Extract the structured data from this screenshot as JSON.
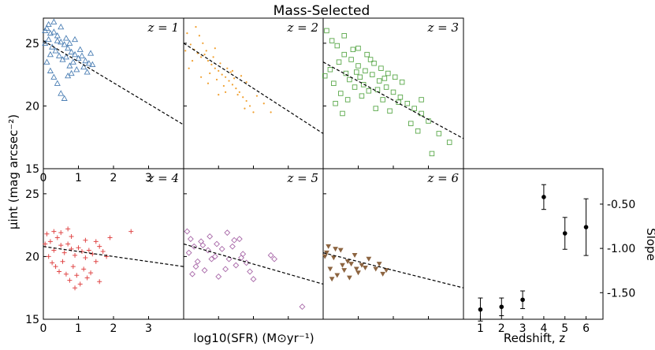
{
  "title": "Mass-Selected",
  "xlabel": "log10(SFR) (M⊙yr⁻¹)",
  "ylabel": "μint (mag arcsec⁻²)",
  "slope_xlabel": "Redshift, z",
  "slope_ylabel": "Slope",
  "chart_data": [
    {
      "type": "scatter",
      "panel_label": "z = 1",
      "marker": "open triangle",
      "color": "#4c7fb4",
      "xlim": [
        0,
        4
      ],
      "ylim": [
        15,
        27
      ],
      "yticks": [
        "15",
        "20",
        "25"
      ],
      "xticks": [
        "0",
        "1",
        "2",
        "3"
      ],
      "fit_line": {
        "x": [
          0,
          4
        ],
        "y": [
          25.2,
          18.5
        ]
      },
      "points": [
        [
          0.1,
          26.2
        ],
        [
          0.2,
          25.8
        ],
        [
          0.3,
          25.9
        ],
        [
          0.15,
          25.3
        ],
        [
          0.4,
          25.6
        ],
        [
          0.5,
          25.1
        ],
        [
          0.6,
          24.9
        ],
        [
          0.25,
          24.7
        ],
        [
          0.35,
          24.4
        ],
        [
          0.7,
          24.6
        ],
        [
          0.8,
          24.3
        ],
        [
          0.9,
          24.1
        ],
        [
          1.0,
          23.8
        ],
        [
          1.1,
          24.0
        ],
        [
          1.2,
          23.6
        ],
        [
          1.3,
          23.4
        ],
        [
          1.4,
          23.3
        ],
        [
          0.05,
          25.0
        ],
        [
          0.45,
          24.0
        ],
        [
          0.55,
          23.7
        ],
        [
          0.65,
          23.9
        ],
        [
          0.75,
          23.2
        ],
        [
          0.85,
          23.5
        ],
        [
          0.95,
          22.9
        ],
        [
          0.1,
          23.5
        ],
        [
          0.2,
          22.8
        ],
        [
          0.3,
          22.3
        ],
        [
          0.4,
          21.8
        ],
        [
          0.5,
          21.0
        ],
        [
          0.6,
          20.6
        ],
        [
          0.7,
          22.4
        ],
        [
          0.15,
          26.5
        ],
        [
          0.3,
          26.7
        ],
        [
          0.5,
          26.3
        ],
        [
          0.65,
          25.4
        ],
        [
          0.75,
          25.0
        ],
        [
          1.05,
          24.5
        ],
        [
          1.15,
          23.1
        ],
        [
          1.25,
          22.7
        ],
        [
          1.35,
          24.2
        ],
        [
          0.2,
          24.1
        ],
        [
          0.05,
          26.0
        ],
        [
          0.4,
          25.2
        ],
        [
          0.9,
          25.3
        ],
        [
          0.8,
          22.6
        ]
      ]
    },
    {
      "type": "scatter",
      "panel_label": "z = 2",
      "marker": "dot",
      "color": "#f0a030",
      "xlim": [
        0,
        4
      ],
      "ylim": [
        15,
        27
      ],
      "fit_line": {
        "x": [
          0,
          4
        ],
        "y": [
          25.0,
          17.8
        ]
      },
      "points": [
        [
          0.1,
          25.8
        ],
        [
          0.2,
          24.9
        ],
        [
          0.3,
          24.5
        ],
        [
          0.4,
          24.2
        ],
        [
          0.5,
          23.9
        ],
        [
          0.6,
          24.1
        ],
        [
          0.7,
          23.6
        ],
        [
          0.8,
          23.3
        ],
        [
          0.9,
          23.0
        ],
        [
          1.0,
          22.8
        ],
        [
          1.1,
          22.5
        ],
        [
          1.2,
          22.3
        ],
        [
          1.3,
          22.0
        ],
        [
          1.4,
          21.7
        ],
        [
          1.5,
          21.4
        ],
        [
          1.6,
          21.1
        ],
        [
          1.7,
          20.7
        ],
        [
          1.8,
          20.4
        ],
        [
          1.9,
          20.0
        ],
        [
          2.0,
          19.5
        ],
        [
          0.35,
          26.3
        ],
        [
          0.45,
          25.6
        ],
        [
          0.55,
          25.0
        ],
        [
          0.65,
          24.4
        ],
        [
          0.75,
          22.6
        ],
        [
          0.85,
          23.9
        ],
        [
          0.95,
          22.1
        ],
        [
          1.05,
          23.4
        ],
        [
          1.15,
          21.6
        ],
        [
          1.25,
          23.0
        ],
        [
          1.35,
          22.7
        ],
        [
          1.45,
          22.2
        ],
        [
          1.55,
          20.9
        ],
        [
          1.65,
          22.4
        ],
        [
          0.25,
          23.6
        ],
        [
          0.15,
          23.0
        ],
        [
          0.05,
          24.4
        ],
        [
          1.8,
          21.9
        ],
        [
          2.1,
          20.8
        ],
        [
          2.3,
          20.2
        ],
        [
          2.5,
          19.5
        ],
        [
          1.75,
          19.8
        ],
        [
          0.5,
          22.3
        ],
        [
          0.9,
          24.6
        ],
        [
          1.2,
          21.1
        ],
        [
          1.4,
          22.8
        ],
        [
          0.7,
          21.8
        ],
        [
          1.0,
          20.9
        ]
      ]
    },
    {
      "type": "scatter",
      "panel_label": "z = 3",
      "marker": "open square",
      "color": "#5aa84a",
      "xlim": [
        0,
        4
      ],
      "ylim": [
        15,
        27
      ],
      "fit_line": {
        "x": [
          0,
          4
        ],
        "y": [
          23.5,
          17.4
        ]
      },
      "points": [
        [
          0.1,
          26.0
        ],
        [
          0.25,
          25.2
        ],
        [
          0.4,
          24.8
        ],
        [
          0.6,
          24.1
        ],
        [
          0.8,
          23.7
        ],
        [
          1.0,
          23.2
        ],
        [
          1.2,
          22.8
        ],
        [
          1.4,
          22.5
        ],
        [
          1.6,
          22.0
        ],
        [
          1.8,
          21.5
        ],
        [
          2.0,
          21.1
        ],
        [
          2.2,
          20.7
        ],
        [
          2.4,
          20.2
        ],
        [
          2.6,
          19.8
        ],
        [
          2.8,
          19.4
        ],
        [
          3.0,
          18.8
        ],
        [
          3.3,
          17.8
        ],
        [
          3.6,
          17.1
        ],
        [
          0.3,
          21.8
        ],
        [
          0.5,
          21.0
        ],
        [
          0.7,
          20.5
        ],
        [
          0.9,
          21.5
        ],
        [
          1.1,
          20.8
        ],
        [
          1.3,
          21.2
        ],
        [
          1.5,
          19.8
        ],
        [
          1.7,
          20.5
        ],
        [
          1.9,
          19.6
        ],
        [
          0.2,
          22.9
        ],
        [
          0.45,
          23.5
        ],
        [
          0.65,
          22.6
        ],
        [
          0.85,
          24.5
        ],
        [
          1.05,
          22.3
        ],
        [
          1.25,
          24.1
        ],
        [
          1.45,
          23.4
        ],
        [
          1.65,
          23.0
        ],
        [
          1.85,
          22.6
        ],
        [
          2.05,
          22.3
        ],
        [
          2.25,
          21.9
        ],
        [
          2.5,
          18.6
        ],
        [
          2.7,
          18.0
        ],
        [
          3.1,
          16.2
        ],
        [
          0.35,
          20.2
        ],
        [
          0.55,
          19.4
        ],
        [
          0.75,
          22.1
        ],
        [
          0.95,
          22.7
        ],
        [
          1.15,
          21.7
        ],
        [
          1.35,
          23.7
        ],
        [
          1.55,
          21.3
        ],
        [
          1.75,
          22.2
        ],
        [
          2.15,
          20.3
        ],
        [
          0.05,
          22.4
        ],
        [
          1.0,
          24.6
        ],
        [
          0.6,
          25.6
        ],
        [
          2.8,
          20.5
        ]
      ]
    },
    {
      "type": "scatter",
      "panel_label": "z = 4",
      "marker": "plus",
      "color": "#e04848",
      "xlim": [
        0,
        4
      ],
      "ylim": [
        15,
        27
      ],
      "yticks": [
        "15",
        "20",
        "25"
      ],
      "xticks": [
        "0",
        "1",
        "2",
        "3"
      ],
      "fit_line": {
        "x": [
          0,
          4
        ],
        "y": [
          20.8,
          19.2
        ]
      },
      "points": [
        [
          0.1,
          21.8
        ],
        [
          0.2,
          21.2
        ],
        [
          0.3,
          20.5
        ],
        [
          0.4,
          21.5
        ],
        [
          0.5,
          20.9
        ],
        [
          0.6,
          20.3
        ],
        [
          0.7,
          21.0
        ],
        [
          0.8,
          20.6
        ],
        [
          0.9,
          20.1
        ],
        [
          1.0,
          20.7
        ],
        [
          1.1,
          20.4
        ],
        [
          1.2,
          19.9
        ],
        [
          1.3,
          20.5
        ],
        [
          1.4,
          20.2
        ],
        [
          1.5,
          19.6
        ],
        [
          1.6,
          20.8
        ],
        [
          1.7,
          20.4
        ],
        [
          1.8,
          20.0
        ],
        [
          0.15,
          20.0
        ],
        [
          0.25,
          19.5
        ],
        [
          0.35,
          19.2
        ],
        [
          0.45,
          18.8
        ],
        [
          0.55,
          19.6
        ],
        [
          0.65,
          18.6
        ],
        [
          0.75,
          18.1
        ],
        [
          0.85,
          19.2
        ],
        [
          0.95,
          18.5
        ],
        [
          1.05,
          17.8
        ],
        [
          1.15,
          19.0
        ],
        [
          1.25,
          18.3
        ],
        [
          0.05,
          21.0
        ],
        [
          0.5,
          21.9
        ],
        [
          0.8,
          21.6
        ],
        [
          1.2,
          21.3
        ],
        [
          1.5,
          21.2
        ],
        [
          2.5,
          22.0
        ],
        [
          1.9,
          21.5
        ],
        [
          0.3,
          22.0
        ],
        [
          0.7,
          22.2
        ],
        [
          1.35,
          18.7
        ],
        [
          0.9,
          17.5
        ],
        [
          1.6,
          18.0
        ]
      ]
    },
    {
      "type": "scatter",
      "panel_label": "z = 5",
      "marker": "open diamond",
      "color": "#a868a8",
      "xlim": [
        0,
        4
      ],
      "ylim": [
        15,
        27
      ],
      "fit_line": {
        "x": [
          0,
          4
        ],
        "y": [
          21.0,
          17.8
        ]
      },
      "points": [
        [
          0.1,
          22.0
        ],
        [
          0.2,
          21.4
        ],
        [
          0.3,
          20.8
        ],
        [
          0.5,
          21.2
        ],
        [
          0.7,
          20.5
        ],
        [
          0.9,
          20.0
        ],
        [
          1.1,
          20.6
        ],
        [
          1.3,
          19.8
        ],
        [
          1.5,
          19.3
        ],
        [
          1.7,
          20.2
        ],
        [
          1.9,
          18.8
        ],
        [
          0.4,
          19.6
        ],
        [
          0.6,
          18.9
        ],
        [
          0.8,
          19.8
        ],
        [
          1.0,
          18.4
        ],
        [
          1.2,
          19.0
        ],
        [
          1.4,
          20.8
        ],
        [
          1.6,
          21.4
        ],
        [
          1.8,
          19.5
        ],
        [
          2.0,
          18.2
        ],
        [
          2.5,
          20.1
        ],
        [
          2.6,
          19.8
        ],
        [
          3.4,
          16.0
        ],
        [
          0.15,
          20.3
        ],
        [
          0.35,
          19.2
        ],
        [
          0.55,
          20.9
        ],
        [
          0.75,
          21.6
        ],
        [
          0.95,
          21.0
        ],
        [
          1.25,
          21.9
        ],
        [
          1.45,
          21.3
        ],
        [
          1.65,
          19.9
        ],
        [
          0.25,
          18.6
        ]
      ]
    },
    {
      "type": "scatter",
      "panel_label": "z = 6",
      "marker": "filled triangle down",
      "color": "#8c6440",
      "xlim": [
        0,
        4
      ],
      "ylim": [
        15,
        27
      ],
      "fit_line": {
        "x": [
          0,
          4
        ],
        "y": [
          20.3,
          17.5
        ]
      },
      "points": [
        [
          0.1,
          20.3
        ],
        [
          0.3,
          19.9
        ],
        [
          0.5,
          20.5
        ],
        [
          0.7,
          19.6
        ],
        [
          0.9,
          20.1
        ],
        [
          1.1,
          19.3
        ],
        [
          1.3,
          19.8
        ],
        [
          1.5,
          19.0
        ],
        [
          1.7,
          18.6
        ],
        [
          0.2,
          19.0
        ],
        [
          0.4,
          18.5
        ],
        [
          0.6,
          18.9
        ],
        [
          0.8,
          19.4
        ],
        [
          1.0,
          18.7
        ],
        [
          1.2,
          19.1
        ],
        [
          0.15,
          20.8
        ],
        [
          0.35,
          20.6
        ],
        [
          0.55,
          19.3
        ],
        [
          0.75,
          18.3
        ],
        [
          0.95,
          19.0
        ],
        [
          1.6,
          19.4
        ],
        [
          0.25,
          18.2
        ],
        [
          1.8,
          18.9
        ],
        [
          0.05,
          20.0
        ]
      ]
    },
    {
      "type": "scatter",
      "panel_label": "",
      "marker": "filled circle with error bars",
      "color": "#000000",
      "xlim": [
        0.2,
        6.8
      ],
      "ylim": [
        -1.8,
        -0.1
      ],
      "xticks": [
        "1",
        "2",
        "3",
        "4",
        "5",
        "6"
      ],
      "yticks": [
        "-0.50",
        "-1.00",
        "-1.50"
      ],
      "x": [
        1,
        2,
        3,
        4,
        5,
        6
      ],
      "y": [
        -1.69,
        -1.66,
        -1.58,
        -0.42,
        -0.83,
        -0.76
      ],
      "yerr": [
        0.13,
        0.1,
        0.1,
        0.14,
        0.18,
        0.32
      ]
    }
  ]
}
